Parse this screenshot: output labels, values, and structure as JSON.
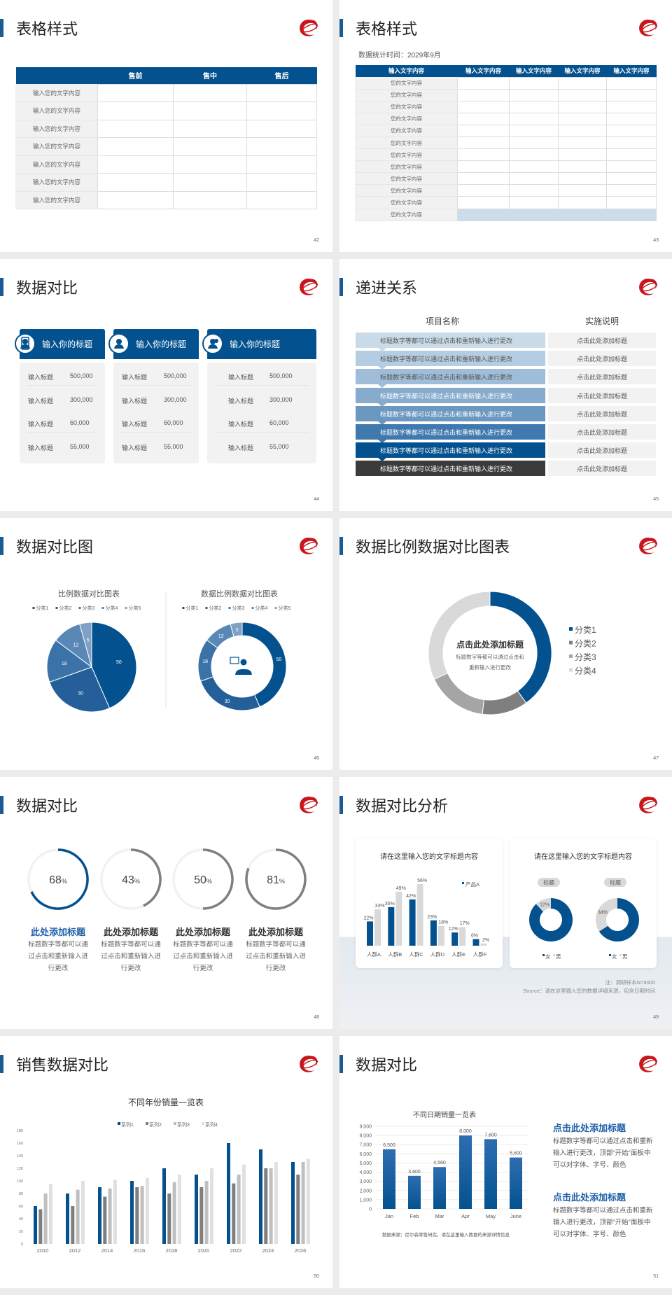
{
  "colors": {
    "brand": "#03528f",
    "title_bar": "#1a5b94",
    "accent_text": "#1d5fa6",
    "logo_red": "#c8161d",
    "gray_dark": "#7f7f7f",
    "gray_mid": "#a5a5a5",
    "gray_light": "#d9d9d9",
    "dark": "#3b3b3b"
  },
  "slides": {
    "s42": {
      "title": "表格样式",
      "page": "42",
      "headers": [
        "",
        "售前",
        "售中",
        "售后"
      ],
      "rows": [
        "输入您的文字内容",
        "输入您的文字内容",
        "输入您的文字内容",
        "输入您的文字内容",
        "输入您的文字内容",
        "输入您的文字内容",
        "输入您的文字内容"
      ]
    },
    "s43": {
      "title": "表格样式",
      "page": "43",
      "subtitle": "数据统计时间：2029年9月",
      "headers": [
        "输入文字内容",
        "输入文字内容",
        "输入文字内容",
        "输入文字内容",
        "输入文字内容"
      ],
      "rows": [
        "您的文字内容",
        "您的文字内容",
        "您的文字内容",
        "您的文字内容",
        "您的文字内容",
        "您的文字内容",
        "您的文字内容",
        "您的文字内容",
        "您的文字内容",
        "您的文字内容",
        "您的文字内容",
        "您的文字内容"
      ]
    },
    "s44": {
      "title": "数据对比",
      "page": "44",
      "cards": [
        {
          "title": "输入你的标题",
          "icon": "mobile-user-icon",
          "rows": [
            {
              "label": "输入标题",
              "value": "500,000"
            },
            {
              "label": "输入标题",
              "value": "300,000"
            },
            {
              "label": "输入标题",
              "value": "60,000"
            },
            {
              "label": "输入标题",
              "value": "55,000"
            }
          ]
        },
        {
          "title": "输入你的标题",
          "icon": "user-settings-icon",
          "rows": [
            {
              "label": "输入标题",
              "value": "500,000"
            },
            {
              "label": "输入标题",
              "value": "300,000"
            },
            {
              "label": "输入标题",
              "value": "60,000"
            },
            {
              "label": "输入标题",
              "value": "55,000"
            }
          ]
        },
        {
          "title": "输入你的标题",
          "icon": "team-icon",
          "rows": [
            {
              "label": "输入标题",
              "value": "500,000"
            },
            {
              "label": "输入标题",
              "value": "300,000"
            },
            {
              "label": "输入标题",
              "value": "60,000"
            },
            {
              "label": "输入标题",
              "value": "55,000"
            }
          ]
        }
      ]
    },
    "s45": {
      "title": "递进关系",
      "page": "45",
      "col1": "项目名称",
      "col2": "实施说明",
      "rows": [
        {
          "item": "标题数字等都可以通过点击和重新输入进行更改",
          "note": "点击此处添加标题"
        },
        {
          "item": "标题数字等都可以通过点击和重新输入进行更改",
          "note": "点击此处添加标题"
        },
        {
          "item": "标题数字等都可以通过点击和重新输入进行更改",
          "note": "点击此处添加标题"
        },
        {
          "item": "标题数字等都可以通过点击和重新输入进行更改",
          "note": "点击此处添加标题"
        },
        {
          "item": "标题数字等都可以通过点击和重新输入进行更改",
          "note": "点击此处添加标题"
        },
        {
          "item": "标题数字等都可以通过点击和重新输入进行更改",
          "note": "点击此处添加标题"
        },
        {
          "item": "标题数字等都可以通过点击和重新输入进行更改",
          "note": "点击此处添加标题"
        },
        {
          "item": "标题数字等都可以通过点击和重新输入进行更改",
          "note": "点击此处添加标题"
        }
      ],
      "row_colors": [
        "#c9dbe9",
        "#b5cde2",
        "#9fbdd8",
        "#86abcd",
        "#6b98c1",
        "#3f79ae",
        "#03528f",
        "#3b3b3b"
      ]
    },
    "s46": {
      "title": "数据对比图",
      "page": "46",
      "center_icon": "customer-service-icon"
    },
    "s47": {
      "title": "数据比例数据对比图表",
      "page": "47",
      "center_title": "点击此处添加标题",
      "center_desc": [
        "标题数字等都可以通过点击和",
        "重新输入进行更改"
      ]
    },
    "s48": {
      "title": "数据对比",
      "page": "48",
      "items": [
        {
          "value": 68,
          "unit": "%",
          "title": "此处添加标题",
          "desc": "标题数字等都可以通过点击和重新输入进行更改"
        },
        {
          "value": 43,
          "unit": "%",
          "title": "此处添加标题",
          "desc": "标题数字等都可以通过点击和重新输入进行更改"
        },
        {
          "value": 50,
          "unit": "%",
          "title": "此处添加标题",
          "desc": "标题数字等都可以通过点击和重新输入进行更改"
        },
        {
          "value": 81,
          "unit": "%",
          "title": "此处添加标题",
          "desc": "标题数字等都可以通过点击和重新输入进行更改"
        }
      ]
    },
    "s49": {
      "title": "数据对比分析",
      "page": "49",
      "note": "注：调研样本N=9000",
      "source": "Source：请在这里输入您的数据详细来源，包含日期时间"
    },
    "s50": {
      "title": "销售数据对比",
      "page": "50"
    },
    "s51": {
      "title": "数据对比",
      "page": "51",
      "source_note": "数据来源：尼尔森零售研究，请在这里输入数据的来源详情信息",
      "blocks": [
        {
          "heading": "点击此处添加标题",
          "text": "标题数字等都可以通过点击和重新输入进行更改，顶部“开始”面板中可以对字体、字号、颜色"
        },
        {
          "heading": "点击此处添加标题",
          "text": "标题数字等都可以通过点击和重新输入进行更改，顶部“开始”面板中可以对字体、字号、颜色"
        }
      ]
    }
  },
  "chart_data": [
    {
      "type": "pie",
      "title": "比例数据对比图表",
      "categories": [
        "分类1",
        "分类2",
        "分类3",
        "分类4",
        "分类5"
      ],
      "values": [
        50,
        30,
        18,
        12,
        5
      ],
      "colors": [
        "#03528f",
        "#245f99",
        "#3b72a8",
        "#5a88b6",
        "#7ea1c5"
      ],
      "legend": "top"
    },
    {
      "type": "pie",
      "variant": "donut",
      "title": "数据比例数据对比图表",
      "categories": [
        "分类1",
        "分类2",
        "分类3",
        "分类4",
        "分类5"
      ],
      "values": [
        50,
        30,
        18,
        12,
        5
      ],
      "colors": [
        "#03528f",
        "#245f99",
        "#3b72a8",
        "#5a88b6",
        "#7ea1c5"
      ],
      "legend": "top"
    },
    {
      "type": "pie",
      "variant": "donut",
      "categories": [
        "分类1",
        "分类2",
        "分类3",
        "分类4"
      ],
      "values": [
        40,
        12,
        16,
        32
      ],
      "colors": [
        "#03528f",
        "#7f7f7f",
        "#a5a5a5",
        "#d9d9d9"
      ],
      "legend": "right"
    },
    {
      "type": "bar",
      "title": "请在这里输入您的文字标题内容",
      "categories": [
        "人群A",
        "人群B",
        "人群C",
        "人群D",
        "人群E",
        "人群F"
      ],
      "series": [
        {
          "name": "产品A",
          "values": [
            22,
            35,
            42,
            23,
            12,
            6
          ],
          "labels": [
            "22%",
            "35%",
            "42%",
            "23%",
            "12%",
            "6%"
          ],
          "color": "#03528f"
        },
        {
          "values": [
            33,
            49,
            56,
            18,
            17,
            2
          ],
          "labels": [
            "33%",
            "49%",
            "56%",
            "18%",
            "17%",
            "2%"
          ],
          "color": "#d9d9d9"
        }
      ],
      "legend": "top-right",
      "grid": false
    },
    {
      "type": "pie",
      "variant": "donut",
      "title": "请在这里输入您的文字标题内容",
      "legend": "bottom",
      "charts": [
        {
          "label": "标题",
          "categories": [
            "女",
            "男"
          ],
          "values": [
            88,
            12
          ],
          "labels": [
            "88%",
            "12%"
          ],
          "colors": [
            "#03528f",
            "#d9d9d9"
          ]
        },
        {
          "label": "标题",
          "categories": [
            "女",
            "男"
          ],
          "values": [
            66,
            34
          ],
          "labels": [
            "66%",
            "34%"
          ],
          "colors": [
            "#03528f",
            "#d9d9d9"
          ]
        }
      ]
    },
    {
      "type": "bar",
      "title": "不同年份销量一览表",
      "categories": [
        "2010",
        "2012",
        "2014",
        "2016",
        "2018",
        "2020",
        "2022",
        "2024",
        "2026"
      ],
      "series": [
        {
          "name": "系列1",
          "values": [
            60,
            80,
            90,
            100,
            120,
            110,
            160,
            150,
            130
          ],
          "color": "#03528f"
        },
        {
          "name": "系列2",
          "values": [
            55,
            60,
            75,
            90,
            80,
            90,
            96,
            120,
            110
          ],
          "color": "#7f7f7f"
        },
        {
          "name": "系列3",
          "values": [
            80,
            86,
            88,
            92,
            98,
            100,
            110,
            120,
            130
          ],
          "color": "#bfbfbf"
        },
        {
          "name": "系列4",
          "values": [
            95,
            100,
            102,
            105,
            110,
            120,
            126,
            130,
            135
          ],
          "color": "#e0e0e0"
        }
      ],
      "ylim": [
        0,
        180
      ],
      "yticks": [
        "0",
        "20",
        "40",
        "60",
        "80",
        "100",
        "120",
        "140",
        "160",
        "180"
      ],
      "legend": "top",
      "grid": false
    },
    {
      "type": "bar",
      "title": "不同日期销量一览表",
      "categories": [
        "Jan",
        "Feb",
        "Mar",
        "Apr",
        "May",
        "June"
      ],
      "values": [
        6500,
        3600,
        4560,
        8000,
        7600,
        5600
      ],
      "labels": [
        "6,500",
        "3,600",
        "4,560",
        "8,000",
        "7,600",
        "5,600"
      ],
      "ylim": [
        0,
        9000
      ],
      "yticks": [
        "0",
        "1,000",
        "2,000",
        "3,000",
        "4,000",
        "5,000",
        "6,000",
        "7,000",
        "8,000",
        "9,000"
      ],
      "grid": true,
      "color": "#03528f"
    }
  ]
}
